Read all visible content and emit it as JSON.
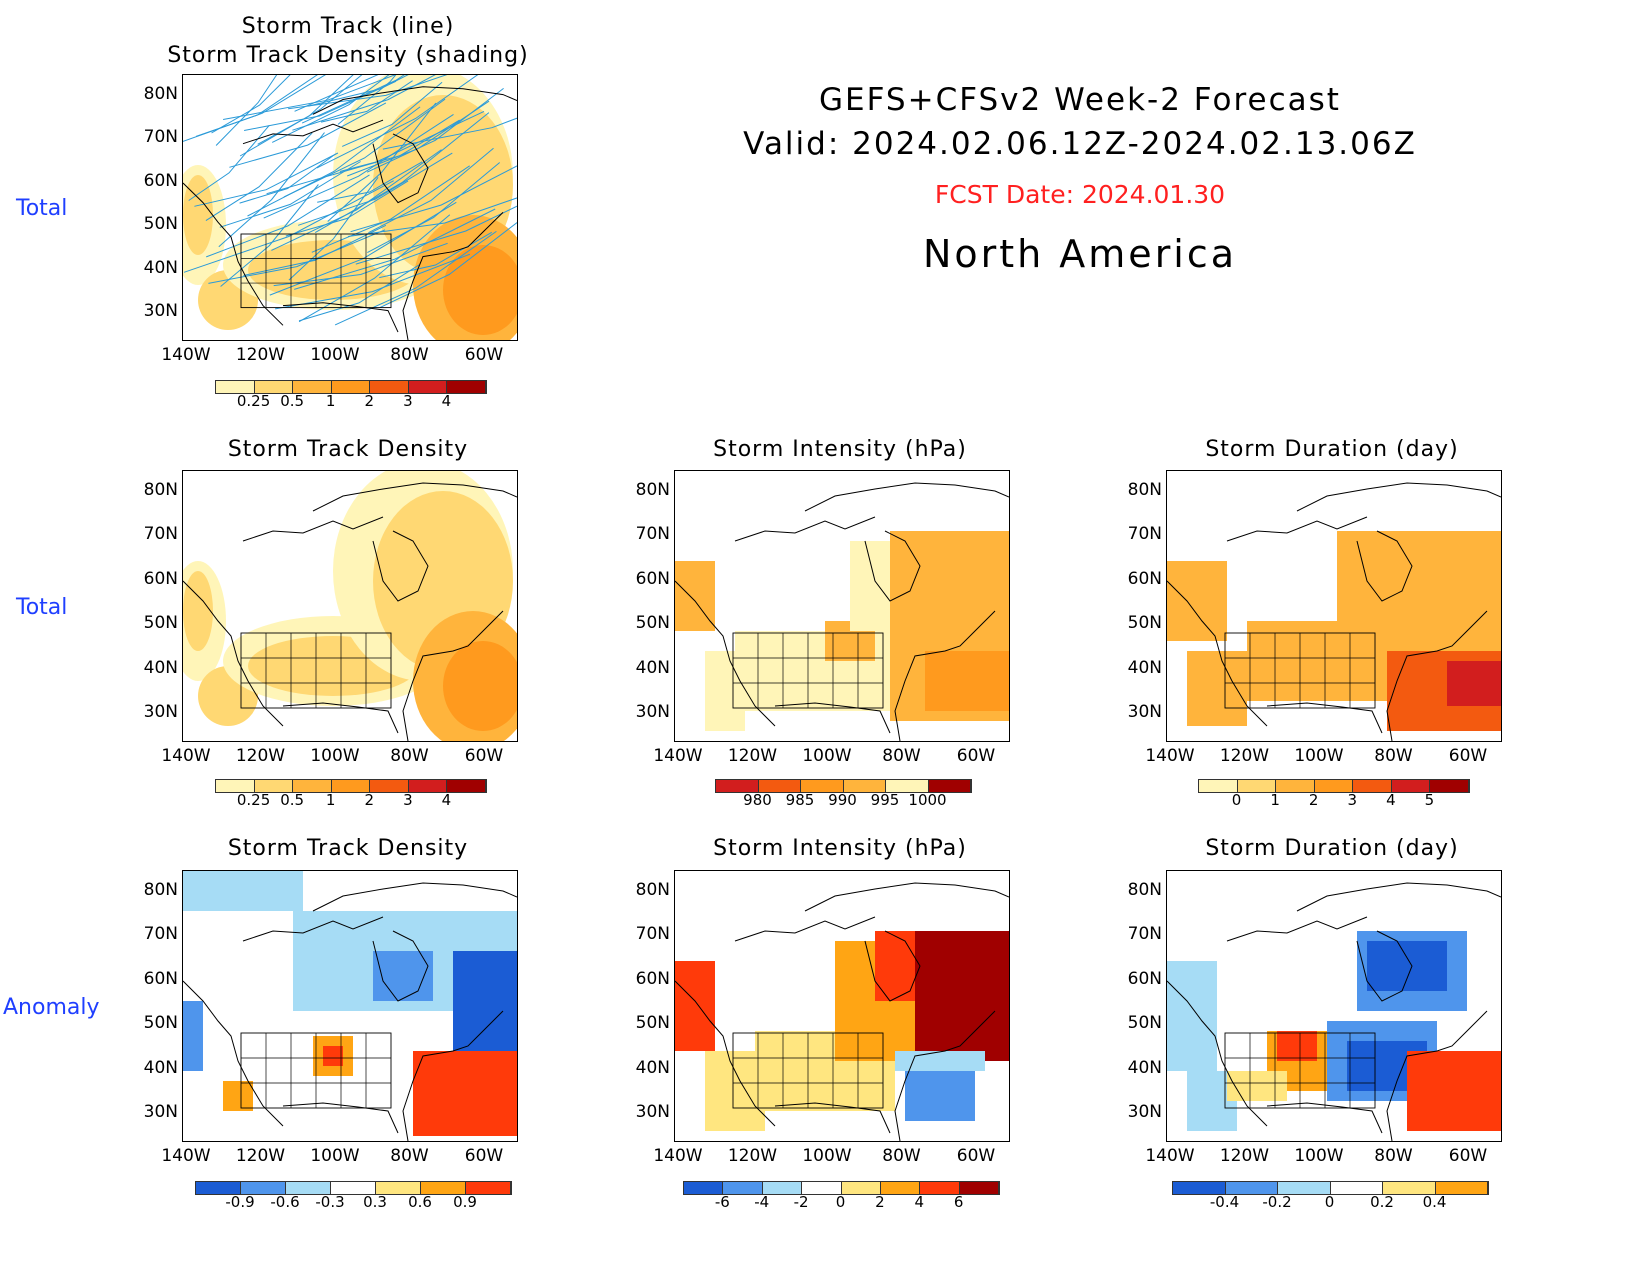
{
  "header": {
    "line1": "GEFS+CFSv2 Week-2 Forecast",
    "line2": "Valid: 2024.02.06.12Z-2024.02.13.06Z",
    "fcst": "FCST Date: 2024.01.30",
    "region": "North America"
  },
  "row_labels": [
    "Total",
    "Total",
    "Anomaly"
  ],
  "lat_ticks": [
    "80N",
    "70N",
    "60N",
    "50N",
    "40N",
    "30N"
  ],
  "lon_ticks": [
    "140W",
    "120W",
    "100W",
    "80W",
    "60W"
  ],
  "panels": [
    {
      "title": "Storm Track (line)\nStorm Track Density (shading)",
      "colorbar": [
        "0.25",
        "0.5",
        "1",
        "2",
        "3",
        "4"
      ]
    },
    {
      "title": "Storm Track Density",
      "colorbar": [
        "0.25",
        "0.5",
        "1",
        "2",
        "3",
        "4"
      ]
    },
    {
      "title": "Storm Intensity (hPa)",
      "colorbar": [
        "980",
        "985",
        "990",
        "995",
        "1000"
      ]
    },
    {
      "title": "Storm Duration (day)",
      "colorbar": [
        "0",
        "1",
        "2",
        "3",
        "4",
        "5"
      ]
    },
    {
      "title": "Storm Track Density",
      "colorbar": [
        "-0.9",
        "-0.6",
        "-0.3",
        "0.3",
        "0.6",
        "0.9"
      ]
    },
    {
      "title": "Storm Intensity (hPa)",
      "colorbar": [
        "-6",
        "-4",
        "-2",
        "0",
        "2",
        "4",
        "6"
      ]
    },
    {
      "title": "Storm Duration (day)",
      "colorbar": [
        "-0.4",
        "-0.2",
        "0",
        "0.2",
        "0.4"
      ]
    }
  ],
  "colors": {
    "warm_scale": [
      "#fff5b8",
      "#ffd873",
      "#ffb43c",
      "#ff9a1e",
      "#f35a10",
      "#d21e1e",
      "#a00000"
    ],
    "anom_scale": [
      "#1b5cd4",
      "#4f95ec",
      "#a6dcf5",
      "#ffffff",
      "#ffe680",
      "#ffa514",
      "#ff3a0a",
      "#a00000"
    ],
    "track_line": "#2a9ad8",
    "row_label": "#1f3fff",
    "fcst": "#ff2020"
  }
}
